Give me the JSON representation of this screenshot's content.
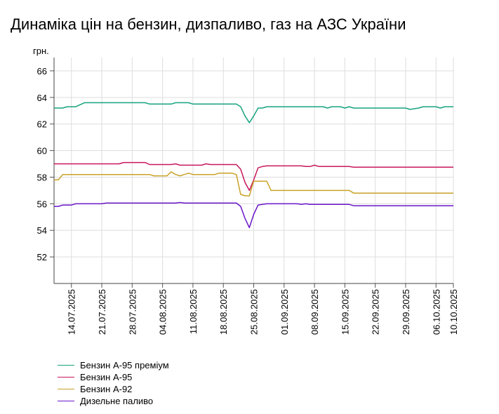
{
  "chart_data": {
    "type": "line",
    "title": "Динаміка цін на бензин, дизпаливо, газ на АЗС України",
    "ylabel": "грн.",
    "ylim": [
      50,
      67
    ],
    "yticks": [
      52,
      54,
      56,
      58,
      60,
      62,
      64,
      66
    ],
    "grid": true,
    "legend_position": "bottom-left",
    "xlim": [
      "2025-07-10",
      "2025-10-10"
    ],
    "xticks": [
      "14.07.2025",
      "21.07.2025",
      "28.07.2025",
      "04.08.2025",
      "11.08.2025",
      "18.08.2025",
      "25.08.2025",
      "01.09.2025",
      "08.09.2025",
      "15.09.2025",
      "22.09.2025",
      "29.09.2025",
      "06.10.2025",
      "10.10.2025"
    ],
    "series": [
      {
        "name": "Бензин А-95 преміум",
        "color": "#16a37f",
        "points": [
          [
            "2025-07-10",
            63.2
          ],
          [
            "2025-07-12",
            63.2
          ],
          [
            "2025-07-13",
            63.3
          ],
          [
            "2025-07-15",
            63.3
          ],
          [
            "2025-07-17",
            63.6
          ],
          [
            "2025-07-31",
            63.6
          ],
          [
            "2025-08-01",
            63.5
          ],
          [
            "2025-08-06",
            63.5
          ],
          [
            "2025-08-07",
            63.6
          ],
          [
            "2025-08-10",
            63.6
          ],
          [
            "2025-08-11",
            63.5
          ],
          [
            "2025-08-21",
            63.5
          ],
          [
            "2025-08-22",
            63.3
          ],
          [
            "2025-08-23",
            62.6
          ],
          [
            "2025-08-24",
            62.1
          ],
          [
            "2025-08-25",
            62.6
          ],
          [
            "2025-08-26",
            63.2
          ],
          [
            "2025-08-27",
            63.2
          ],
          [
            "2025-08-28",
            63.3
          ],
          [
            "2025-09-10",
            63.3
          ],
          [
            "2025-09-11",
            63.2
          ],
          [
            "2025-09-12",
            63.3
          ],
          [
            "2025-09-14",
            63.3
          ],
          [
            "2025-09-15",
            63.2
          ],
          [
            "2025-09-16",
            63.3
          ],
          [
            "2025-09-17",
            63.2
          ],
          [
            "2025-09-29",
            63.2
          ],
          [
            "2025-09-30",
            63.1
          ],
          [
            "2025-10-02",
            63.2
          ],
          [
            "2025-10-03",
            63.3
          ],
          [
            "2025-10-06",
            63.3
          ],
          [
            "2025-10-07",
            63.2
          ],
          [
            "2025-10-08",
            63.3
          ],
          [
            "2025-10-10",
            63.3
          ]
        ]
      },
      {
        "name": "Бензин А-95",
        "color": "#c8175d",
        "points": [
          [
            "2025-07-10",
            59.0
          ],
          [
            "2025-07-25",
            59.0
          ],
          [
            "2025-07-26",
            59.1
          ],
          [
            "2025-07-31",
            59.1
          ],
          [
            "2025-08-01",
            58.95
          ],
          [
            "2025-08-06",
            58.95
          ],
          [
            "2025-08-07",
            59.0
          ],
          [
            "2025-08-08",
            58.9
          ],
          [
            "2025-08-13",
            58.9
          ],
          [
            "2025-08-14",
            59.0
          ],
          [
            "2025-08-15",
            58.95
          ],
          [
            "2025-08-21",
            58.95
          ],
          [
            "2025-08-22",
            58.6
          ],
          [
            "2025-08-23",
            57.6
          ],
          [
            "2025-08-24",
            57.0
          ],
          [
            "2025-08-25",
            57.8
          ],
          [
            "2025-08-26",
            58.7
          ],
          [
            "2025-08-27",
            58.8
          ],
          [
            "2025-08-28",
            58.85
          ],
          [
            "2025-09-05",
            58.85
          ],
          [
            "2025-09-06",
            58.8
          ],
          [
            "2025-09-07",
            58.8
          ],
          [
            "2025-09-08",
            58.9
          ],
          [
            "2025-09-09",
            58.8
          ],
          [
            "2025-09-16",
            58.8
          ],
          [
            "2025-09-17",
            58.75
          ],
          [
            "2025-10-10",
            58.75
          ]
        ]
      },
      {
        "name": "Бензин А-92",
        "color": "#c9a227",
        "points": [
          [
            "2025-07-10",
            57.8
          ],
          [
            "2025-07-11",
            57.8
          ],
          [
            "2025-07-12",
            58.2
          ],
          [
            "2025-08-01",
            58.2
          ],
          [
            "2025-08-02",
            58.1
          ],
          [
            "2025-08-05",
            58.1
          ],
          [
            "2025-08-06",
            58.4
          ],
          [
            "2025-08-07",
            58.2
          ],
          [
            "2025-08-08",
            58.1
          ],
          [
            "2025-08-09",
            58.2
          ],
          [
            "2025-08-10",
            58.3
          ],
          [
            "2025-08-11",
            58.2
          ],
          [
            "2025-08-16",
            58.2
          ],
          [
            "2025-08-17",
            58.3
          ],
          [
            "2025-08-20",
            58.3
          ],
          [
            "2025-08-21",
            58.2
          ],
          [
            "2025-08-22",
            56.7
          ],
          [
            "2025-08-23",
            56.6
          ],
          [
            "2025-08-24",
            56.6
          ],
          [
            "2025-08-25",
            57.7
          ],
          [
            "2025-08-28",
            57.7
          ],
          [
            "2025-08-29",
            57.0
          ],
          [
            "2025-09-16",
            57.0
          ],
          [
            "2025-09-17",
            56.8
          ],
          [
            "2025-10-10",
            56.8
          ]
        ]
      },
      {
        "name": "Дизельне паливо",
        "color": "#6a16c9",
        "points": [
          [
            "2025-07-10",
            55.8
          ],
          [
            "2025-07-11",
            55.8
          ],
          [
            "2025-07-12",
            55.9
          ],
          [
            "2025-07-14",
            55.9
          ],
          [
            "2025-07-15",
            56.0
          ],
          [
            "2025-07-21",
            56.0
          ],
          [
            "2025-07-22",
            56.05
          ],
          [
            "2025-08-07",
            56.05
          ],
          [
            "2025-08-08",
            56.1
          ],
          [
            "2025-08-09",
            56.05
          ],
          [
            "2025-08-21",
            56.05
          ],
          [
            "2025-08-22",
            55.8
          ],
          [
            "2025-08-23",
            54.9
          ],
          [
            "2025-08-24",
            54.2
          ],
          [
            "2025-08-25",
            55.2
          ],
          [
            "2025-08-26",
            55.9
          ],
          [
            "2025-08-27",
            55.95
          ],
          [
            "2025-08-28",
            56.0
          ],
          [
            "2025-09-04",
            56.0
          ],
          [
            "2025-09-05",
            55.95
          ],
          [
            "2025-09-06",
            56.0
          ],
          [
            "2025-09-07",
            55.95
          ],
          [
            "2025-09-16",
            55.95
          ],
          [
            "2025-09-17",
            55.85
          ],
          [
            "2025-10-10",
            55.85
          ]
        ]
      }
    ]
  }
}
